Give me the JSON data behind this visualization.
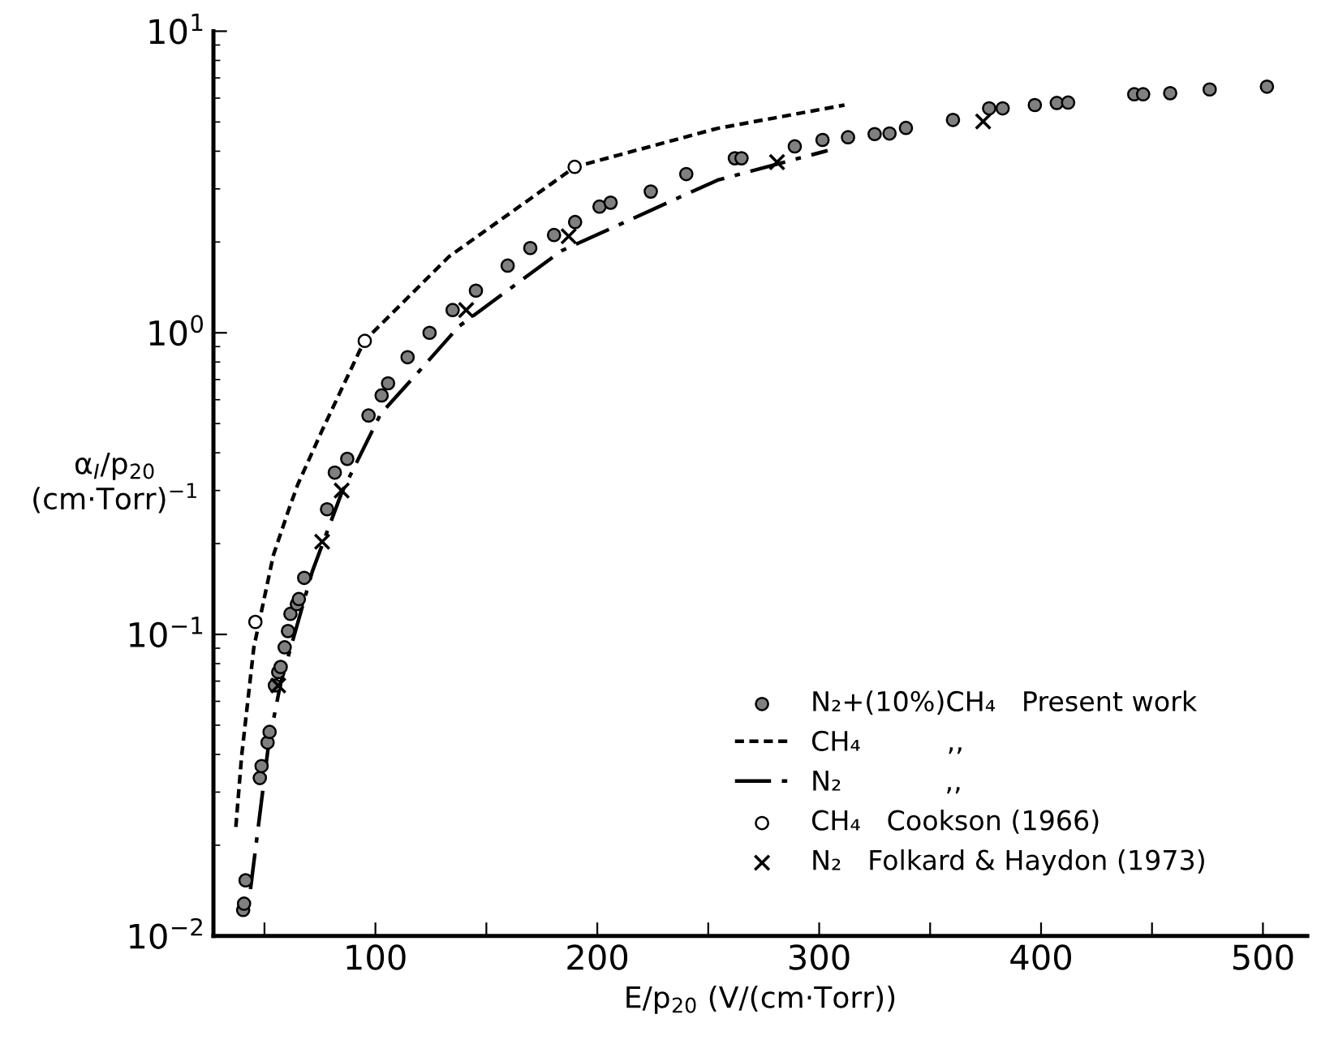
{
  "chart_data": {
    "type": "scatter",
    "xlabel": "E/p$_{20}$ (V/(cm·Torr))",
    "ylabel": "α$_{I}$/p$_{20}$\n(cm·Torr)$^{−1}$",
    "log": "y",
    "xlim": [
      27,
      520
    ],
    "xticks": [
      {
        "value": 50,
        "label": null
      },
      100,
      {
        "value": 150,
        "label": null
      },
      200,
      {
        "value": 250,
        "label": null
      },
      300,
      {
        "value": 350,
        "label": null
      },
      400,
      {
        "value": 450,
        "label": null
      },
      500
    ],
    "ylim": [
      0.01,
      10
    ],
    "yticks": [
      {
        "value": 0.01,
        "label": "10$^{−2}$"
      },
      {
        "value": 0.1,
        "label": "10$^{−1}$"
      },
      {
        "value": 1,
        "label": "10$^{0}$"
      },
      {
        "value": 10,
        "label": "10$^{1}$"
      }
    ],
    "grid": false,
    "legend": "bottom right",
    "series": [
      {
        "name": "N₂+(10%)CH₄   Present work",
        "marker": "circle",
        "color": "#808080",
        "x": [
          40.4,
          40.8,
          41.5,
          47.9,
          48.7,
          51.4,
          52.3,
          54.7,
          56.2,
          57.3,
          59.1,
          60.6,
          61.7,
          64.6,
          65.5,
          67.9,
          78.2,
          81.7,
          87.3,
          96.9,
          102.8,
          105.7,
          114.5,
          124.4,
          134.8,
          145.3,
          159.6,
          169.8,
          180.5,
          190,
          201,
          206,
          224.1,
          240.1,
          262,
          265,
          289,
          301.5,
          313,
          325,
          331.7,
          339.1,
          360.3,
          376.6,
          382.7,
          397.2,
          407.1,
          412.2,
          442,
          446,
          458.2,
          476,
          501.8
        ],
        "values": [
          0.0122,
          0.0128,
          0.0153,
          0.0334,
          0.0366,
          0.0438,
          0.0475,
          0.0677,
          0.075,
          0.078,
          0.0906,
          0.1026,
          0.117,
          0.126,
          0.131,
          0.154,
          0.26,
          0.344,
          0.382,
          0.532,
          0.62,
          0.68,
          0.83,
          1.0,
          1.19,
          1.38,
          1.67,
          1.91,
          2.11,
          2.33,
          2.62,
          2.7,
          2.94,
          3.36,
          3.79,
          3.79,
          4.15,
          4.36,
          4.45,
          4.56,
          4.58,
          4.78,
          5.08,
          5.55,
          5.55,
          5.69,
          5.78,
          5.8,
          6.18,
          6.18,
          6.23,
          6.41,
          6.55
        ]
      },
      {
        "name": "CH₄          ,,",
        "type": "line",
        "line_style": "dashed",
        "color": "#000000",
        "x": [
          37.1,
          39.7,
          45.2,
          54,
          61,
          65,
          76,
          95,
          133.2,
          190,
          254,
          311.4
        ],
        "values": [
          0.023,
          0.0395,
          0.0905,
          0.183,
          0.26,
          0.314,
          0.475,
          0.94,
          1.79,
          3.55,
          4.76,
          5.69
        ]
      },
      {
        "name": "N₂            ,,",
        "type": "line",
        "line_style": "dashdot",
        "color": "#000000",
        "x": [
          43.7,
          51.8,
          57.3,
          71.6,
          84.8,
          102.4,
          120,
          137.6,
          183.8,
          254.3,
          303.8
        ],
        "values": [
          0.0143,
          0.0429,
          0.069,
          0.162,
          0.295,
          0.539,
          0.75,
          1.05,
          1.87,
          3.21,
          4.02
        ]
      },
      {
        "name": "CH₄   Cookson (1966)",
        "marker": "circle",
        "color": "#ffffff",
        "x": [
          45.9,
          95.2,
          189.8
        ],
        "values": [
          0.11,
          0.94,
          3.55
        ]
      },
      {
        "name": "N₂   Folkard & Haydon (1973)",
        "marker": "cross",
        "color": "#000000",
        "x": [
          56.2,
          76,
          84.8,
          140.9,
          187.1,
          281,
          373.9
        ],
        "values": [
          0.0677,
          0.203,
          0.3,
          1.19,
          2.09,
          3.68,
          5.02
        ]
      }
    ]
  }
}
